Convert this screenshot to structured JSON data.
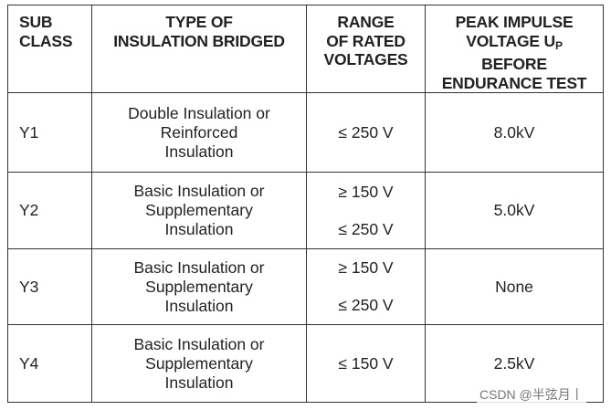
{
  "table": {
    "headers": [
      [
        "SUB",
        "CLASS"
      ],
      [
        "TYPE OF",
        "INSULATION BRIDGED"
      ],
      [
        "RANGE",
        "OF RATED",
        "VOLTAGES"
      ],
      [
        "PEAK IMPULSE",
        [
          "VOLTAGE U",
          "P"
        ],
        "BEFORE",
        "ENDURANCE TEST"
      ]
    ],
    "rows": [
      [
        "Y1",
        [
          "Double Insulation or",
          "Reinforced",
          "Insulation"
        ],
        [
          "≤ 250 V"
        ],
        "8.0kV"
      ],
      [
        "Y2",
        [
          "Basic Insulation or",
          "Supplementary",
          "Insulation"
        ],
        [
          "≥ 150 V",
          "≤ 250 V"
        ],
        "5.0kV"
      ],
      [
        "Y3",
        [
          "Basic Insulation or",
          "Supplementary",
          "Insulation"
        ],
        [
          "≥ 150 V",
          "≤ 250 V"
        ],
        "None"
      ],
      [
        "Y4",
        [
          "Basic Insulation or",
          "Supplementary",
          "Insulation"
        ],
        [
          "≤ 150 V"
        ],
        "2.5kV"
      ]
    ]
  },
  "watermark": "CSDN @半弦月丨"
}
